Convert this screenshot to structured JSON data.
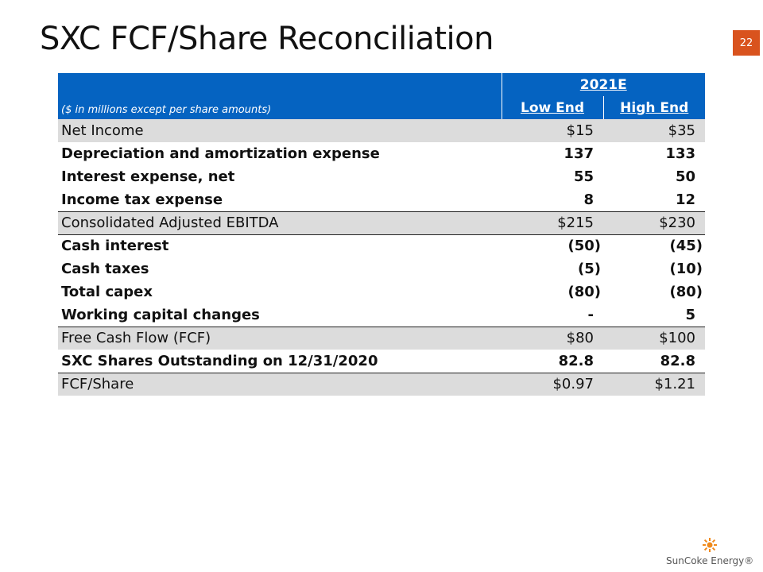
{
  "title": "SXC FCF/Share Reconciliation",
  "page_number": "22",
  "table": {
    "group_header": "2021E",
    "note": "($ in millions except per share amounts)",
    "columns": [
      "Low End",
      "High End"
    ],
    "rows": [
      [
        "Net Income",
        "$15",
        "$35"
      ],
      [
        "Depreciation and amortization expense",
        "137",
        "133"
      ],
      [
        "Interest expense, net",
        "55",
        "50"
      ],
      [
        "Income tax expense",
        "8",
        "12"
      ],
      [
        "Consolidated Adjusted EBITDA",
        "$215",
        "$230"
      ],
      [
        "Cash interest",
        "(50)",
        "(45)"
      ],
      [
        "Cash taxes",
        "(5)",
        "(10)"
      ],
      [
        "Total capex",
        "(80)",
        "(80)"
      ],
      [
        "Working capital changes",
        "-",
        "5"
      ],
      [
        "Free Cash Flow (FCF)",
        "$80",
        "$100"
      ],
      [
        "SXC Shares Outstanding on 12/31/2020",
        "82.8",
        "82.8"
      ],
      [
        "FCF/Share",
        "$0.97",
        "$1.21"
      ]
    ]
  },
  "logo": "SunCoke Energy®"
}
